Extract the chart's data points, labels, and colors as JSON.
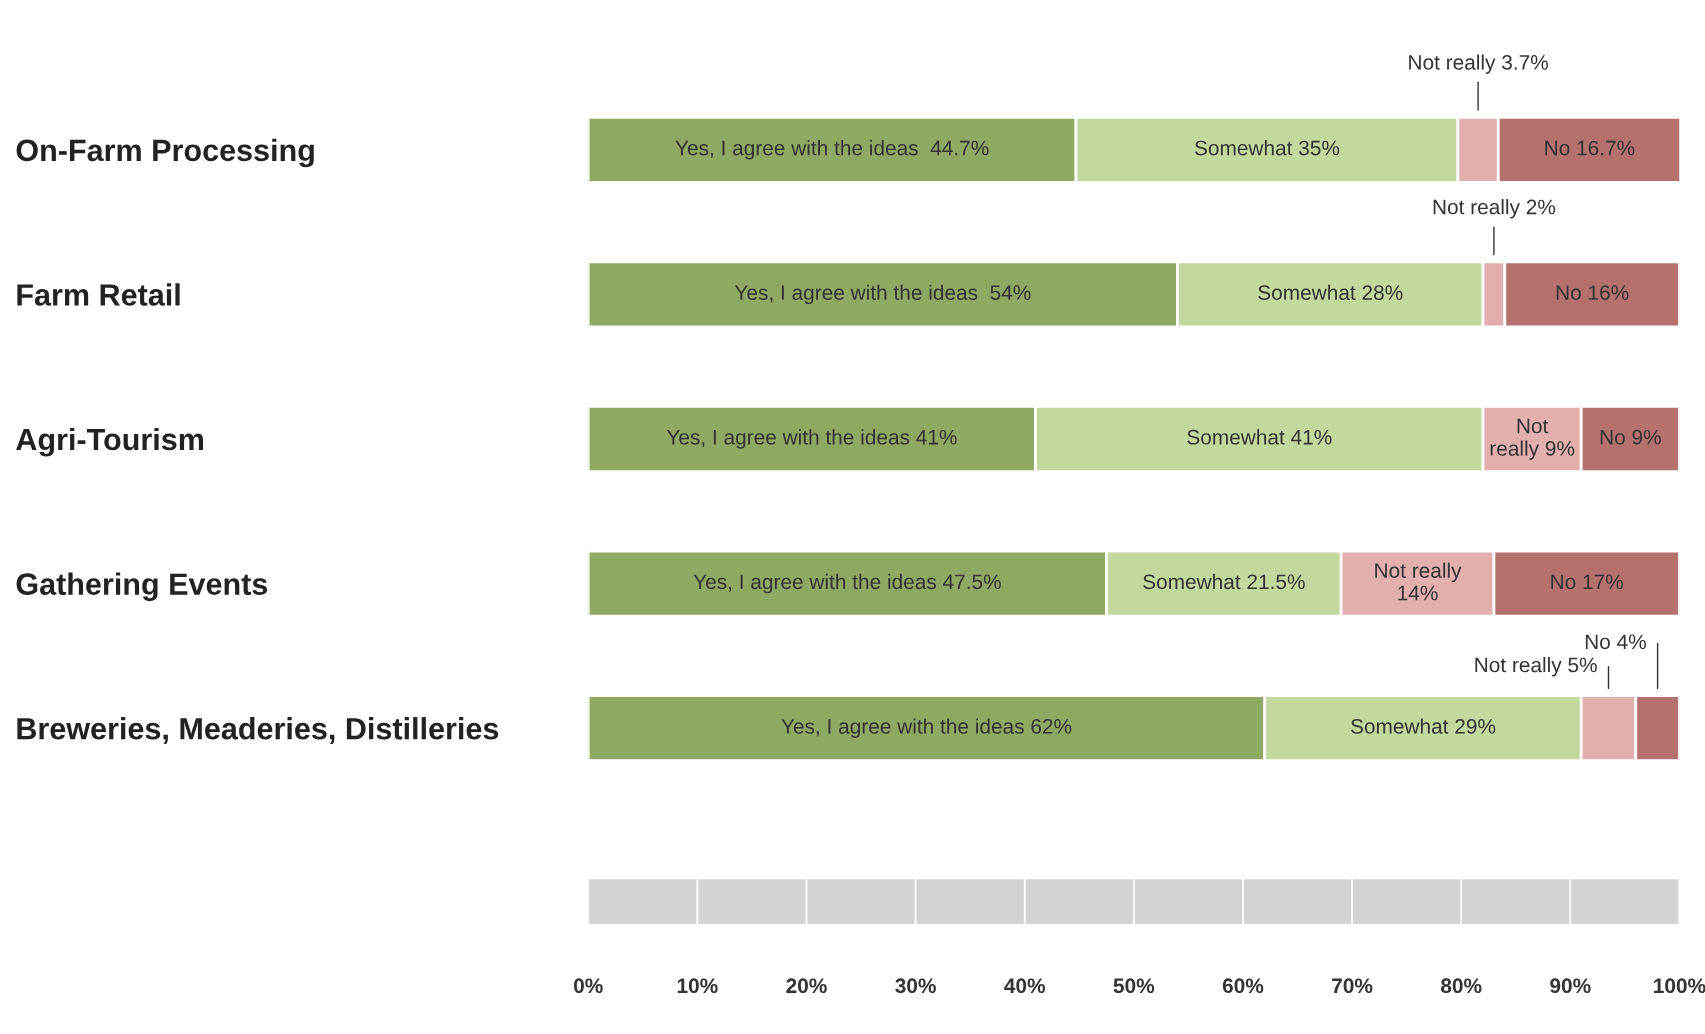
{
  "chart_data": {
    "type": "bar",
    "orientation": "horizontal",
    "stacked": true,
    "categories": [
      "On-Farm Processing",
      "Farm Retail",
      "Agri-Tourism",
      "Gathering Events",
      "Breweries, Meaderies, Distilleries"
    ],
    "series": [
      {
        "color": "#8fa862",
        "values": [
          44.7,
          54,
          41,
          47.5,
          62
        ],
        "value_labels": [
          "Yes, I agree with the ideas  44.7%",
          "Yes, I agree with the ideas  54%",
          "Yes, I agree with the ideas 41%",
          "Yes, I agree with the ideas 47.5%",
          "Yes, I agree with the ideas 62%"
        ]
      },
      {
        "color": "#c3d89c",
        "values": [
          35,
          28,
          41,
          21.5,
          29
        ],
        "value_labels": [
          "Somewhat 35%",
          "Somewhat 28%",
          "Somewhat 41%",
          "Somewhat 21.5%",
          "Somewhat 29%"
        ]
      },
      {
        "color": "#e2afae",
        "values": [
          3.7,
          2,
          9,
          14,
          5
        ],
        "value_labels": [
          "Not really 3.7%",
          "Not really 2%",
          "Not\nreally 9%",
          "Not really\n14%",
          "Not really 5%"
        ]
      },
      {
        "color": "#b5716e",
        "values": [
          16.7,
          16,
          9,
          17,
          4
        ],
        "value_labels": [
          "No 16.7%",
          "No 16%",
          "No 9%",
          "No 17%",
          "No 4%"
        ]
      }
    ],
    "xlim": [
      0,
      100
    ],
    "xticks": [
      {
        "value": 0,
        "label": "0%"
      },
      {
        "value": 10,
        "label": "10%"
      },
      {
        "value": 20,
        "label": "20%"
      },
      {
        "value": 30,
        "label": "30%"
      },
      {
        "value": 40,
        "label": "40%"
      },
      {
        "value": 50,
        "label": "50%"
      },
      {
        "value": 60,
        "label": "60%"
      },
      {
        "value": 70,
        "label": "70%"
      },
      {
        "value": 80,
        "label": "80%"
      },
      {
        "value": 90,
        "label": "90%"
      },
      {
        "value": 100,
        "label": "100%"
      }
    ],
    "grid": false,
    "legend": false
  }
}
